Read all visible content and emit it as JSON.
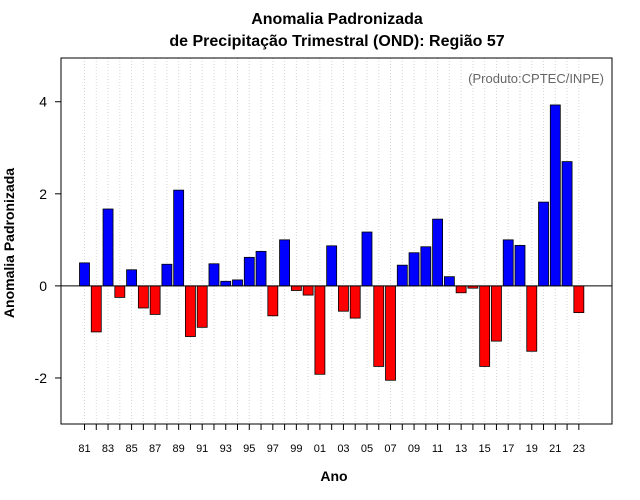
{
  "chart_data": {
    "type": "bar",
    "title_line1": "Anomalia Padronizada",
    "title_line2": "de Precipitação Trimestral (OND): Região 57",
    "xlabel": "Ano",
    "ylabel": "Anomalia Padronizada",
    "credit": "(Produto:CPTEC/INPE)",
    "ylim": [
      -3.0,
      4.95
    ],
    "yticks": [
      4,
      2,
      0,
      -2
    ],
    "ytick_labels": [
      "4",
      "2",
      "0",
      "-2"
    ],
    "categories": [
      "81",
      "82",
      "83",
      "84",
      "85",
      "86",
      "87",
      "88",
      "89",
      "90",
      "91",
      "92",
      "93",
      "94",
      "95",
      "96",
      "97",
      "98",
      "99",
      "00",
      "01",
      "02",
      "03",
      "04",
      "05",
      "06",
      "07",
      "08",
      "09",
      "10",
      "11",
      "12",
      "13",
      "14",
      "15",
      "16",
      "17",
      "18",
      "19",
      "20",
      "21",
      "22",
      "23"
    ],
    "xtick_labels": [
      "81",
      "83",
      "85",
      "87",
      "89",
      "91",
      "93",
      "95",
      "97",
      "99",
      "01",
      "03",
      "05",
      "07",
      "09",
      "11",
      "13",
      "15",
      "17",
      "19",
      "21",
      "23"
    ],
    "values": [
      0.5,
      -1.0,
      1.67,
      -0.25,
      0.35,
      -0.48,
      -0.62,
      0.47,
      2.08,
      -1.1,
      -0.9,
      0.48,
      0.1,
      0.13,
      0.62,
      0.75,
      -0.65,
      1.0,
      -0.1,
      -0.2,
      -1.92,
      0.87,
      -0.55,
      -0.7,
      1.17,
      -1.75,
      -2.05,
      0.45,
      0.72,
      0.85,
      1.45,
      0.2,
      -0.15,
      -0.05,
      -1.75,
      -1.2,
      1.0,
      0.88,
      -1.42,
      1.82,
      3.93,
      2.7,
      -0.58
    ],
    "positive_color": "#0000ff",
    "negative_color": "#ff0000",
    "grid": "vertical dotted",
    "zero_line": true
  }
}
